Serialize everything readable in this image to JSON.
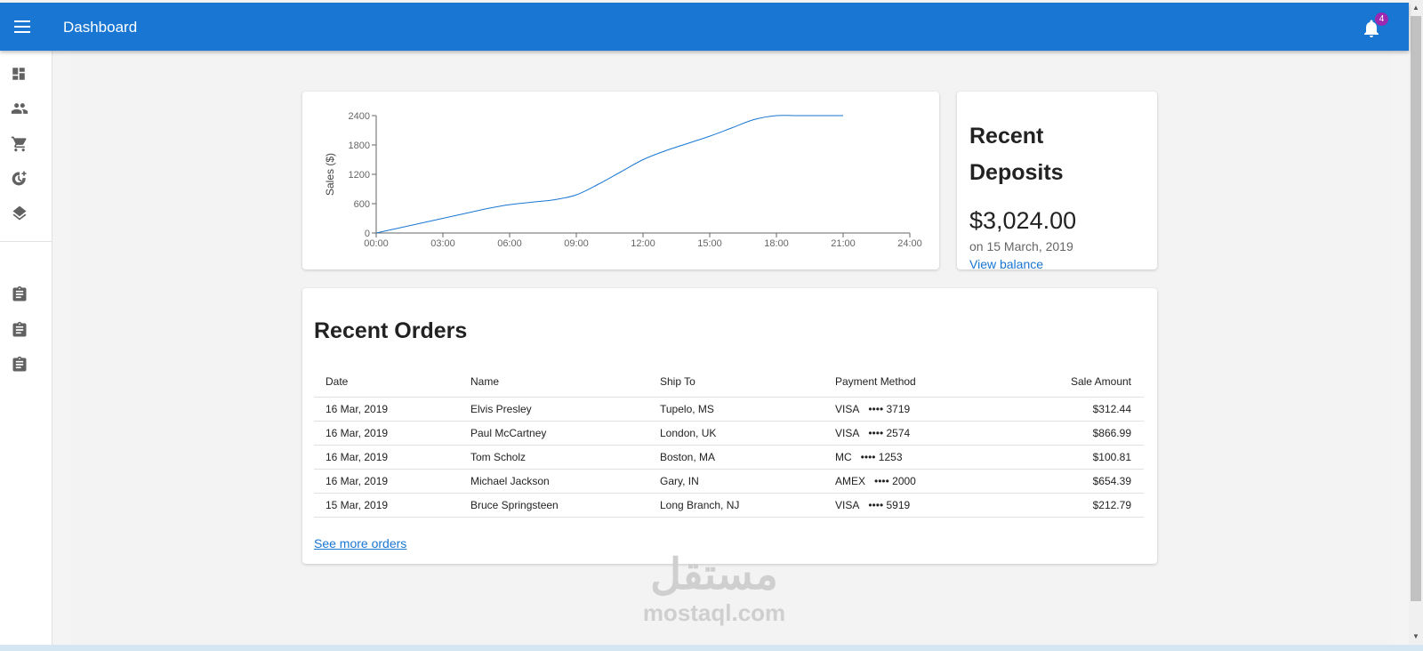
{
  "app": {
    "title": "Dashboard",
    "notification_count": "4",
    "brand_color": "#1976d2",
    "badge_color": "#9c27b0"
  },
  "sidebar": {
    "items": [
      {
        "icon": "dashboard-icon"
      },
      {
        "icon": "people-icon"
      },
      {
        "icon": "shopping-cart-icon"
      },
      {
        "icon": "history-add-icon"
      },
      {
        "icon": "layers-icon"
      },
      {
        "icon": "clipboard-icon"
      },
      {
        "icon": "clipboard-icon"
      },
      {
        "icon": "clipboard-icon"
      }
    ]
  },
  "chart_data": {
    "type": "line",
    "ylabel": "Sales ($)",
    "xlabel": "",
    "x_ticks": [
      "00:00",
      "03:00",
      "06:00",
      "09:00",
      "12:00",
      "15:00",
      "18:00",
      "21:00",
      "24:00"
    ],
    "y_ticks": [
      "0",
      "600",
      "1200",
      "1800",
      "2400"
    ],
    "ylim": [
      0,
      2400
    ],
    "xlim": [
      0,
      24
    ],
    "series": [
      {
        "x": [
          0,
          1,
          2,
          3,
          4,
          5,
          6,
          7,
          8,
          9,
          10,
          11,
          12,
          13,
          14,
          15,
          16,
          17,
          18,
          19,
          20,
          21
        ],
        "y": [
          0,
          100,
          200,
          300,
          400,
          500,
          580,
          630,
          680,
          780,
          1000,
          1250,
          1500,
          1680,
          1830,
          1980,
          2150,
          2320,
          2400,
          2400,
          2400,
          2400
        ]
      }
    ],
    "line_color": "#1976d2",
    "grid": false
  },
  "deposits": {
    "title": "Recent Deposits",
    "amount": "$3,024.00",
    "date": "on 15 March, 2019",
    "link": "View balance"
  },
  "orders": {
    "title": "Recent Orders",
    "columns": [
      "Date",
      "Name",
      "Ship To",
      "Payment Method",
      "Sale Amount"
    ],
    "rows": [
      {
        "date": "16 Mar, 2019",
        "name": "Elvis Presley",
        "ship_to": "Tupelo, MS",
        "payment": "VISA",
        "card_last": "•••• 3719",
        "amount": "$312.44"
      },
      {
        "date": "16 Mar, 2019",
        "name": "Paul McCartney",
        "ship_to": "London, UK",
        "payment": "VISA",
        "card_last": "•••• 2574",
        "amount": "$866.99"
      },
      {
        "date": "16 Mar, 2019",
        "name": "Tom Scholz",
        "ship_to": "Boston, MA",
        "payment": "MC",
        "card_last": "•••• 1253",
        "amount": "$100.81"
      },
      {
        "date": "16 Mar, 2019",
        "name": "Michael Jackson",
        "ship_to": "Gary, IN",
        "payment": "AMEX",
        "card_last": "•••• 2000",
        "amount": "$654.39"
      },
      {
        "date": "15 Mar, 2019",
        "name": "Bruce Springsteen",
        "ship_to": "Long Branch, NJ",
        "payment": "VISA",
        "card_last": "•••• 5919",
        "amount": "$212.79"
      }
    ],
    "more_link": "See more orders"
  },
  "watermark": {
    "arabic": "مستقل",
    "latin": "mostaql.com"
  }
}
